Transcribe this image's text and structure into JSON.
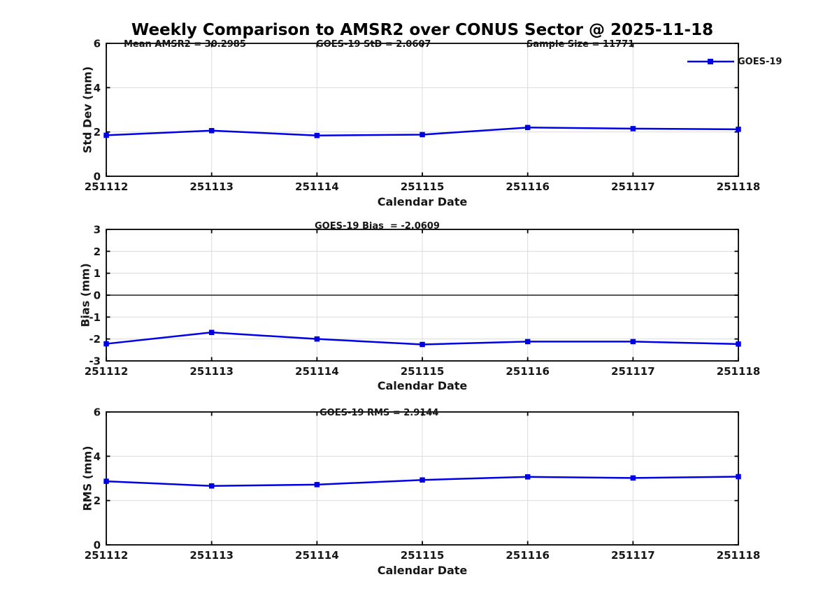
{
  "title": "Weekly Comparison to AMSR2 over CONUS Sector @ 2025-11-18",
  "colors": {
    "series_blue": "#0000e6",
    "grid": "#dcdcdc",
    "axis": "#000000",
    "zero_line": "#404040"
  },
  "chart_data": [
    {
      "type": "line",
      "panel": "std-dev",
      "annotations": [
        "Mean AMSR2 = 30.2985",
        "GOES-19 StD = 2.0607",
        "Sample Size = 11771"
      ],
      "legend": {
        "label": "GOES-19",
        "position": "upper-right",
        "marker": "square"
      },
      "x_categories": [
        "251112",
        "251113",
        "251114",
        "251115",
        "251116",
        "251117",
        "251118"
      ],
      "series": [
        {
          "name": "GOES-19",
          "color": "#0000e6",
          "marker": "square",
          "values": [
            1.85,
            2.06,
            1.84,
            1.88,
            2.2,
            2.15,
            2.12
          ]
        }
      ],
      "xlabel": "Calendar Date",
      "ylabel": "Std Dev (mm)",
      "ylim": [
        0,
        6
      ],
      "yticks": [
        0,
        2,
        4,
        6
      ],
      "grid": true,
      "zero_line": false
    },
    {
      "type": "line",
      "panel": "bias",
      "annotations": [
        "GOES-19 Bias  = -2.0609"
      ],
      "x_categories": [
        "251112",
        "251113",
        "251114",
        "251115",
        "251116",
        "251117",
        "251118"
      ],
      "series": [
        {
          "name": "GOES-19",
          "color": "#0000e6",
          "marker": "square",
          "values": [
            -2.22,
            -1.7,
            -2.0,
            -2.25,
            -2.12,
            -2.12,
            -2.23
          ]
        }
      ],
      "xlabel": "Calendar Date",
      "ylabel": "Bias (mm)",
      "ylim": [
        -3,
        3
      ],
      "yticks": [
        3,
        2,
        1,
        0,
        -1,
        -2,
        -3
      ],
      "grid": true,
      "zero_line": true
    },
    {
      "type": "line",
      "panel": "rms",
      "annotations": [
        "GOES-19 RMS = 2.9144"
      ],
      "x_categories": [
        "251112",
        "251113",
        "251114",
        "251115",
        "251116",
        "251117",
        "251118"
      ],
      "series": [
        {
          "name": "GOES-19",
          "color": "#0000e6",
          "marker": "square",
          "values": [
            2.87,
            2.66,
            2.72,
            2.93,
            3.07,
            3.02,
            3.08
          ]
        }
      ],
      "xlabel": "Calendar Date",
      "ylabel": "RMS (mm)",
      "ylim": [
        0,
        6
      ],
      "yticks": [
        0,
        2,
        4,
        6
      ],
      "grid": true,
      "zero_line": false
    }
  ]
}
